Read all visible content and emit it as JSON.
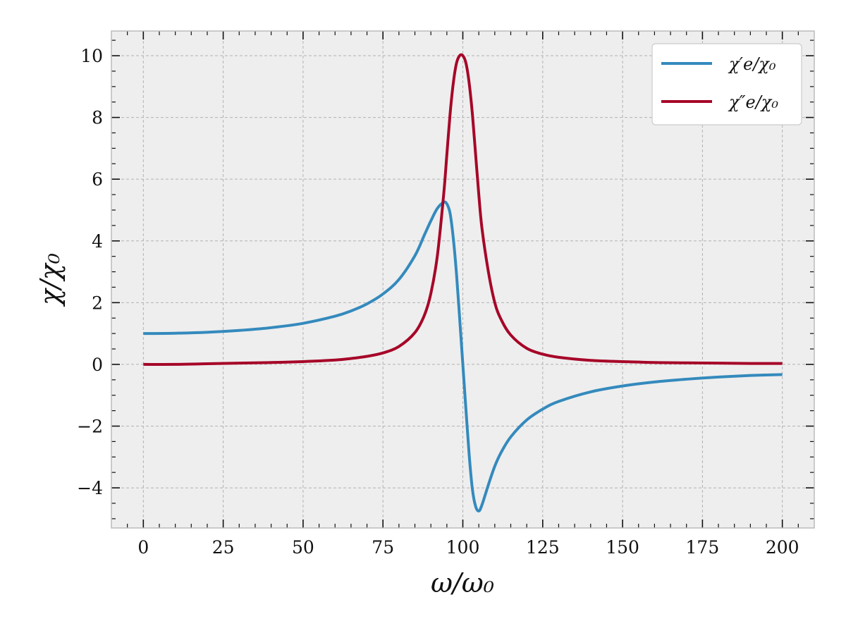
{
  "chart_data": {
    "type": "line",
    "title": "",
    "xlabel": "ω/ω₀",
    "ylabel": "χ/χ₀",
    "xlim": [
      -10,
      210
    ],
    "ylim": [
      -5.3,
      10.8
    ],
    "x_ticks": [
      0,
      25,
      50,
      75,
      100,
      125,
      150,
      175,
      200
    ],
    "x_tick_labels": [
      "0",
      "25",
      "50",
      "75",
      "100",
      "125",
      "150",
      "175",
      "200"
    ],
    "y_ticks": [
      -4,
      -2,
      0,
      2,
      4,
      6,
      8,
      10
    ],
    "y_tick_labels": [
      "−4",
      "−2",
      "0",
      "2",
      "4",
      "6",
      "8",
      "10"
    ],
    "grid": true,
    "legend_position": "top-right",
    "series": [
      {
        "name": "χ′e/χ₀",
        "color": "#348ABD",
        "x": [
          0,
          10,
          20,
          30,
          40,
          50,
          60,
          65,
          70,
          75,
          80,
          85,
          88,
          90,
          92,
          94,
          95,
          96,
          97,
          98,
          99,
          100,
          101,
          102,
          103,
          104,
          105,
          106,
          108,
          110,
          112,
          115,
          120,
          125,
          130,
          140,
          150,
          160,
          170,
          180,
          190,
          200
        ],
        "values": [
          1.0,
          1.01,
          1.04,
          1.1,
          1.19,
          1.33,
          1.56,
          1.73,
          1.96,
          2.28,
          2.75,
          3.52,
          4.2,
          4.65,
          5.05,
          5.25,
          5.2,
          4.9,
          4.1,
          2.95,
          1.5,
          0.0,
          -1.5,
          -2.95,
          -4.05,
          -4.6,
          -4.75,
          -4.55,
          -3.9,
          -3.3,
          -2.85,
          -2.35,
          -1.8,
          -1.45,
          -1.2,
          -0.89,
          -0.7,
          -0.57,
          -0.48,
          -0.41,
          -0.36,
          -0.33
        ]
      },
      {
        "name": "χ″e/χ₀",
        "color": "#A60628",
        "x": [
          0,
          10,
          20,
          30,
          40,
          50,
          60,
          65,
          70,
          75,
          80,
          85,
          88,
          90,
          92,
          94,
          95,
          96,
          97,
          98,
          99,
          100,
          101,
          102,
          103,
          104,
          105,
          106,
          108,
          110,
          112,
          115,
          120,
          125,
          130,
          140,
          150,
          160,
          170,
          180,
          190,
          200
        ],
        "values": [
          0.0,
          0.0,
          0.02,
          0.04,
          0.06,
          0.09,
          0.14,
          0.19,
          0.26,
          0.37,
          0.58,
          1.03,
          1.6,
          2.3,
          3.5,
          5.5,
          6.8,
          8.1,
          9.1,
          9.75,
          10.0,
          10.0,
          9.75,
          9.1,
          8.1,
          6.8,
          5.5,
          4.4,
          3.0,
          2.0,
          1.45,
          0.95,
          0.52,
          0.33,
          0.23,
          0.13,
          0.09,
          0.06,
          0.05,
          0.04,
          0.03,
          0.03
        ]
      }
    ]
  }
}
